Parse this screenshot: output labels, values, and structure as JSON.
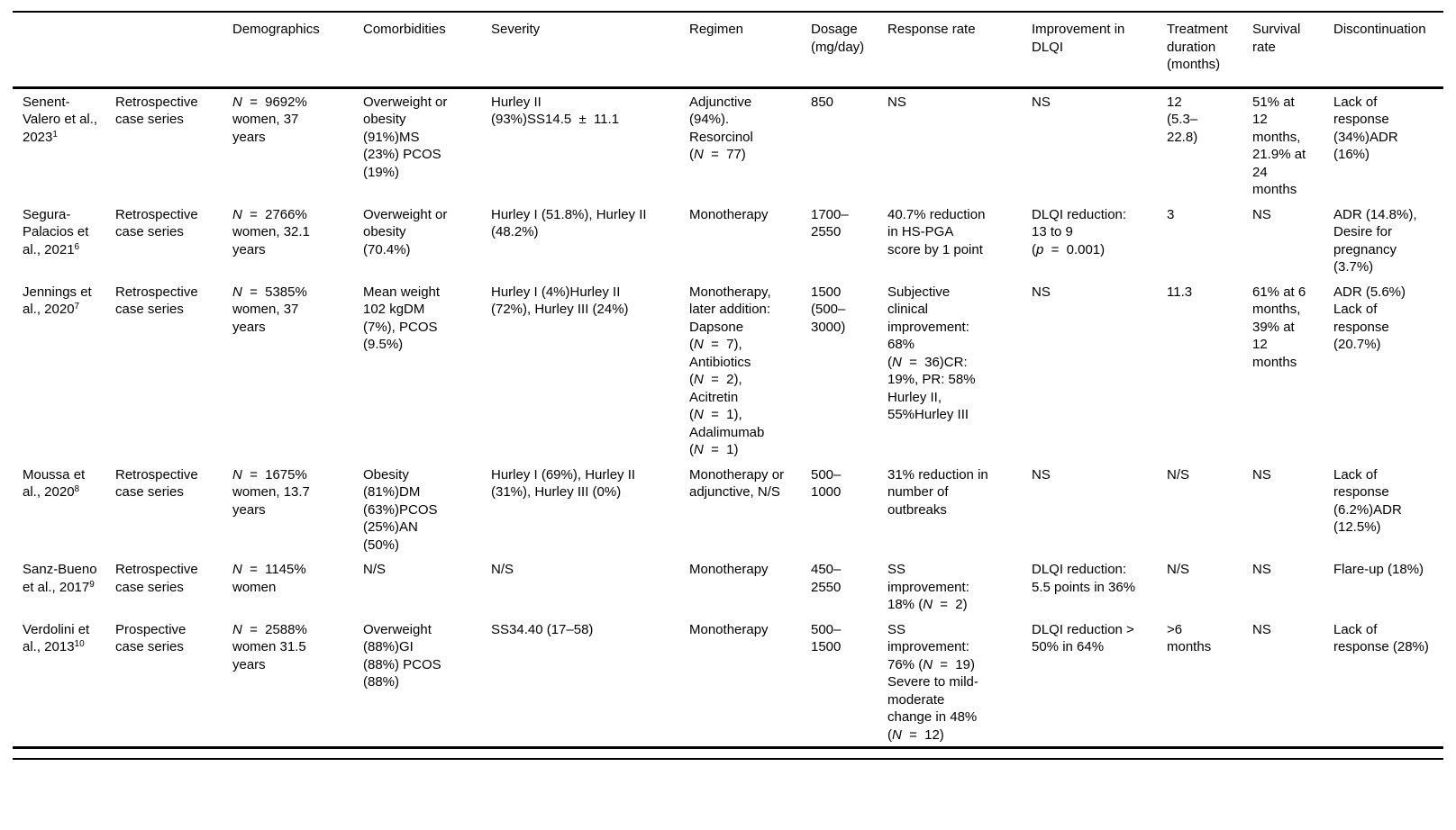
{
  "table": {
    "headers": [
      "",
      "",
      "Demographics",
      "Comorbidities",
      "Severity",
      "Regimen",
      "Dosage (mg/day)",
      "Response rate",
      "Improvement in DLQI",
      "Treatment duration (months)",
      "Survival rate",
      "Discontinuation"
    ],
    "rows": [
      {
        "study": "Senent-Valero et al., 2023",
        "ref": "1",
        "design": "Retrospective case series",
        "demographics": "N = 9692% women, 37 years",
        "comorbidities": "Overweight or obesity (91%)MS (23%) PCOS (19%)",
        "severity": "Hurley II (93%)SS14.5 ± 11.1",
        "regimen": "Adjunctive (94%). Resorcinol (N = 77)",
        "dosage": "850",
        "response_rate": "NS",
        "dlqi_improvement": "NS",
        "treatment_duration": "12 (5.3–22.8)",
        "survival_rate": "51% at 12 months, 21.9% at 24 months",
        "discontinuation": "Lack of response (34%)ADR (16%)"
      },
      {
        "study": "Segura-Palacios et al., 2021",
        "ref": "6",
        "design": "Retrospective case series",
        "demographics": "N = 2766% women, 32.1 years",
        "comorbidities": "Overweight or obesity (70.4%)",
        "severity": "Hurley I (51.8%), Hurley II (48.2%)",
        "regimen": "Monotherapy",
        "dosage": "1700–2550",
        "response_rate": "40.7% reduction in HS-PGA score by 1 point",
        "dlqi_improvement": "DLQI reduction: 13 to 9 (p = 0.001)",
        "treatment_duration": "3",
        "survival_rate": "NS",
        "discontinuation": "ADR (14.8%), Desire for pregnancy (3.7%)"
      },
      {
        "study": "Jennings et al., 2020",
        "ref": "7",
        "design": "Retrospective case series",
        "demographics": "N = 5385% women, 37 years",
        "comorbidities": "Mean weight 102 kgDM (7%), PCOS (9.5%)",
        "severity": "Hurley I (4%)Hurley II (72%), Hurley III (24%)",
        "regimen": "Monotherapy, later addition: Dapsone (N = 7), Antibiotics (N = 2), Acitretin (N = 1), Adalimumab (N = 1)",
        "dosage": "1500 (500–3000)",
        "response_rate": "Subjective clinical improvement: 68% (N = 36)CR: 19%, PR: 58% Hurley II, 55%Hurley III",
        "dlqi_improvement": "NS",
        "treatment_duration": "11.3",
        "survival_rate": "61% at 6 months, 39% at 12 months",
        "discontinuation": "ADR (5.6%) Lack of response (20.7%)"
      },
      {
        "study": "Moussa et al., 2020",
        "ref": "8",
        "design": "Retrospective case series",
        "demographics": "N = 1675% women, 13.7 years",
        "comorbidities": "Obesity (81%)DM (63%)PCOS (25%)AN (50%)",
        "severity": "Hurley I (69%), Hurley II (31%), Hurley III (0%)",
        "regimen": "Monotherapy or adjunctive, N/S",
        "dosage": "500–1000",
        "response_rate": "31% reduction in number of outbreaks",
        "dlqi_improvement": "NS",
        "treatment_duration": "N/S",
        "survival_rate": "NS",
        "discontinuation": "Lack of response (6.2%)ADR (12.5%)"
      },
      {
        "study": "Sanz-Bueno et al., 2017",
        "ref": "9",
        "design": "Retrospective case series",
        "demographics": "N = 1145% women",
        "comorbidities": "N/S",
        "severity": "N/S",
        "regimen": "Monotherapy",
        "dosage": "450–2550",
        "response_rate": "SS improvement: 18% (N = 2)",
        "dlqi_improvement": "DLQI reduction: 5.5 points in 36%",
        "treatment_duration": "N/S",
        "survival_rate": "NS",
        "discontinuation": "Flare-up (18%)"
      },
      {
        "study": "Verdolini et al., 2013",
        "ref": "10",
        "design": "Prospective case series",
        "demographics": "N = 2588% women 31.5 years",
        "comorbidities": "Overweight (88%)GI (88%) PCOS (88%)",
        "severity": "SS34.40 (17–58)",
        "regimen": "Monotherapy",
        "dosage": "500–1500",
        "response_rate": "SS improvement: 76% (N = 19) Severe to mild-moderate change in 48% (N = 12)",
        "dlqi_improvement": "DLQI reduction > 50% in 64%",
        "treatment_duration": ">6 months",
        "survival_rate": "NS",
        "discontinuation": "Lack of response (28%)"
      }
    ]
  }
}
